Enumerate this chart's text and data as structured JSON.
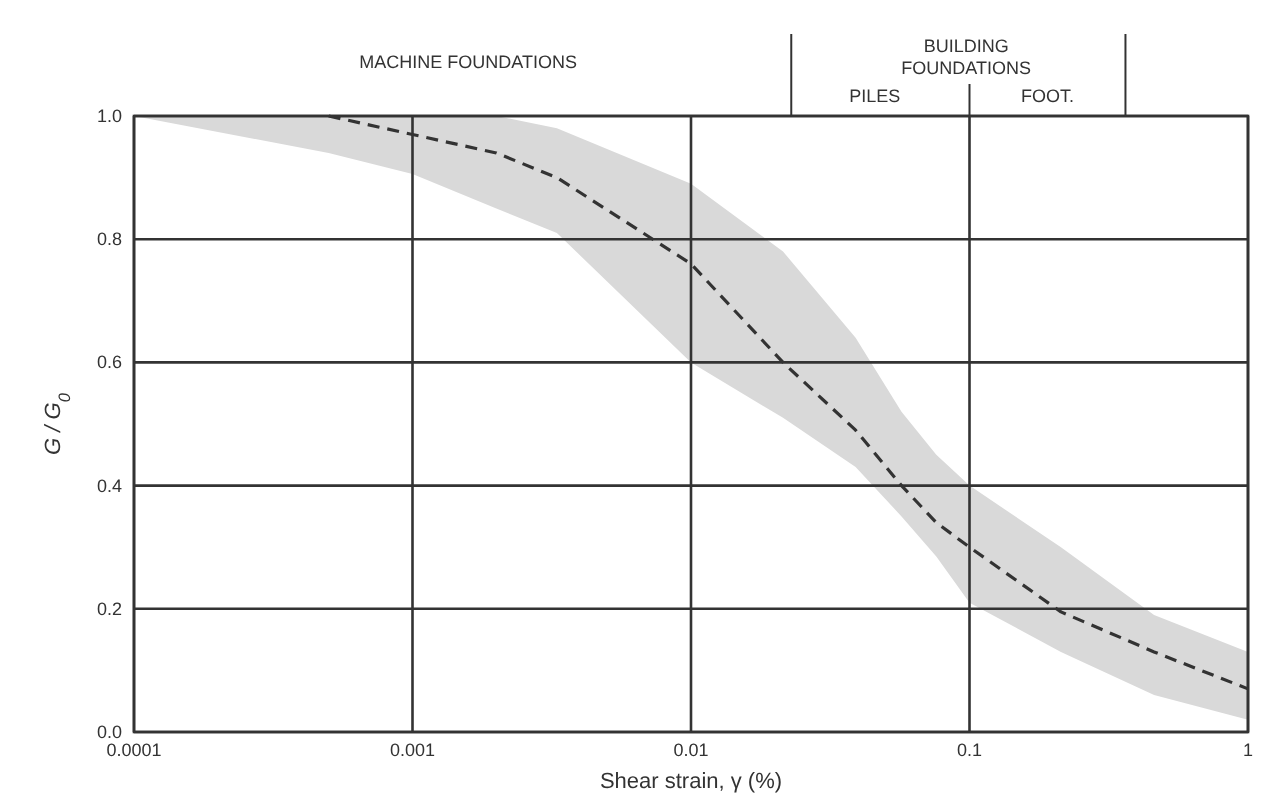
{
  "chart_data": {
    "type": "line",
    "xlabel": "Shear strain, γ (%)",
    "ylabel": "G / G$_{0}$",
    "x": [
      0.0001,
      0.0005,
      0.001,
      0.002,
      0.0033,
      0.01,
      0.0214,
      0.039,
      0.057,
      0.076,
      0.1,
      0.213,
      0.46,
      1
    ],
    "series": [
      {
        "color": "#333333",
        "line_style": "dashed",
        "values": [
          null,
          1.0,
          0.97,
          0.94,
          0.9,
          0.76,
          0.6,
          0.49,
          0.4,
          0.34,
          0.3,
          0.195,
          0.13,
          0.07
        ],
        "upper": [
          1.0,
          1.0,
          1.0,
          1.0,
          0.98,
          0.89,
          0.78,
          0.64,
          0.52,
          0.45,
          0.4,
          0.3,
          0.19,
          0.13
        ],
        "lower": [
          1.0,
          0.94,
          0.906,
          0.85,
          0.81,
          0.6,
          0.51,
          0.43,
          0.35,
          0.285,
          0.21,
          0.13,
          0.06,
          0.02
        ]
      }
    ],
    "annotations": [
      "MACHINE FOUNDATIONS",
      "BUILDING FOUNDATIONS",
      "PILES",
      "FOOT."
    ],
    "log": "x",
    "grid": true,
    "marker": "none",
    "xlim": [
      0.0001,
      1
    ],
    "xticks": [
      0.0001,
      0.001,
      0.01,
      0.1,
      1
    ],
    "ylim": [
      0,
      1
    ],
    "yticks": [
      {
        "value": 0,
        "label": "0.0"
      },
      {
        "value": 0.2,
        "label": "0.2"
      },
      {
        "value": 0.4,
        "label": "0.4"
      },
      {
        "value": 0.6,
        "label": "0.6"
      },
      {
        "value": 0.8,
        "label": "0.8"
      },
      {
        "value": 1,
        "label": "1.0"
      }
    ]
  }
}
